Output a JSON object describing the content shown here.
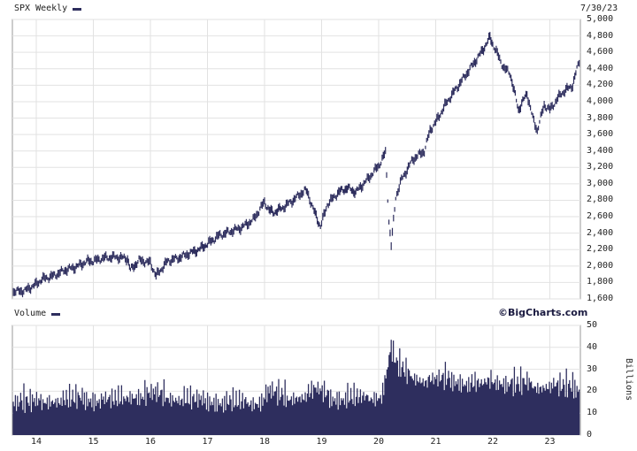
{
  "chart_data": [
    {
      "type": "line",
      "title": "SPX Weekly",
      "date_label": "7/30/23",
      "x_tick_labels": [
        "14",
        "15",
        "16",
        "17",
        "18",
        "19",
        "20",
        "21",
        "22",
        "23"
      ],
      "ylim": [
        1600,
        5000
      ],
      "y_ticks": [
        "1,600",
        "1,800",
        "2,000",
        "2,200",
        "2,400",
        "2,600",
        "2,800",
        "3,000",
        "3,200",
        "3,400",
        "3,600",
        "3,800",
        "4,000",
        "4,200",
        "4,400",
        "4,600",
        "4,800",
        "5,000"
      ],
      "grid": true,
      "series": [
        {
          "name": "SPX Weekly",
          "color": "#2e2e5e",
          "x": [
            2013.6,
            2013.8,
            2014.0,
            2014.1,
            2014.3,
            2014.5,
            2014.7,
            2014.9,
            2015.0,
            2015.2,
            2015.4,
            2015.6,
            2015.65,
            2015.8,
            2016.0,
            2016.1,
            2016.3,
            2016.5,
            2016.7,
            2016.85,
            2017.0,
            2017.2,
            2017.4,
            2017.6,
            2017.8,
            2018.0,
            2018.08,
            2018.15,
            2018.3,
            2018.5,
            2018.7,
            2018.75,
            2018.85,
            2018.98,
            2019.1,
            2019.3,
            2019.45,
            2019.6,
            2019.8,
            2020.0,
            2020.12,
            2020.18,
            2020.22,
            2020.3,
            2020.4,
            2020.6,
            2020.8,
            2020.9,
            2021.0,
            2021.2,
            2021.4,
            2021.6,
            2021.8,
            2021.95,
            2022.0,
            2022.2,
            2022.3,
            2022.45,
            2022.6,
            2022.7,
            2022.78,
            2022.9,
            2023.0,
            2023.2,
            2023.4,
            2023.55
          ],
          "values": [
            1690,
            1700,
            1780,
            1840,
            1880,
            1950,
            1990,
            2060,
            2060,
            2100,
            2110,
            2090,
            1950,
            2070,
            2040,
            1880,
            2060,
            2100,
            2160,
            2200,
            2270,
            2370,
            2420,
            2470,
            2560,
            2780,
            2680,
            2650,
            2700,
            2800,
            2920,
            2900,
            2700,
            2480,
            2750,
            2900,
            2950,
            2900,
            3050,
            3220,
            3380,
            2550,
            2250,
            2840,
            3050,
            3300,
            3400,
            3650,
            3750,
            4000,
            4200,
            4400,
            4600,
            4780,
            4700,
            4400,
            4350,
            3900,
            4100,
            3800,
            3650,
            3960,
            3900,
            4100,
            4200,
            4590
          ]
        },
        {
          "name": "Volume",
          "color": "#2e2e5e",
          "unit": "Billions",
          "ylim": [
            0,
            50
          ],
          "y_ticks": [
            "0",
            "10",
            "20",
            "30",
            "40",
            "50"
          ],
          "x": [
            2013.6,
            2013.9,
            2014.2,
            2014.5,
            2014.8,
            2015.1,
            2015.4,
            2015.6,
            2015.8,
            2016.1,
            2016.4,
            2016.7,
            2017.0,
            2017.3,
            2017.6,
            2017.9,
            2018.1,
            2018.4,
            2018.7,
            2018.9,
            2019.2,
            2019.5,
            2019.8,
            2020.05,
            2020.15,
            2020.22,
            2020.3,
            2020.5,
            2020.8,
            2021.0,
            2021.2,
            2021.5,
            2021.8,
            2022.0,
            2022.2,
            2022.4,
            2022.6,
            2022.8,
            2023.0,
            2023.2,
            2023.4,
            2023.55
          ],
          "values": [
            15,
            14,
            15,
            15,
            16,
            15,
            15,
            17,
            17,
            18,
            16,
            15,
            15,
            14,
            14,
            14,
            19,
            16,
            17,
            20,
            16,
            16,
            16,
            17,
            30,
            39,
            32,
            27,
            24,
            24,
            25,
            23,
            22,
            24,
            23,
            22,
            23,
            21,
            22,
            21,
            21,
            20
          ]
        }
      ],
      "volume_label": "Volume",
      "brand": "©BigCharts.com"
    }
  ]
}
